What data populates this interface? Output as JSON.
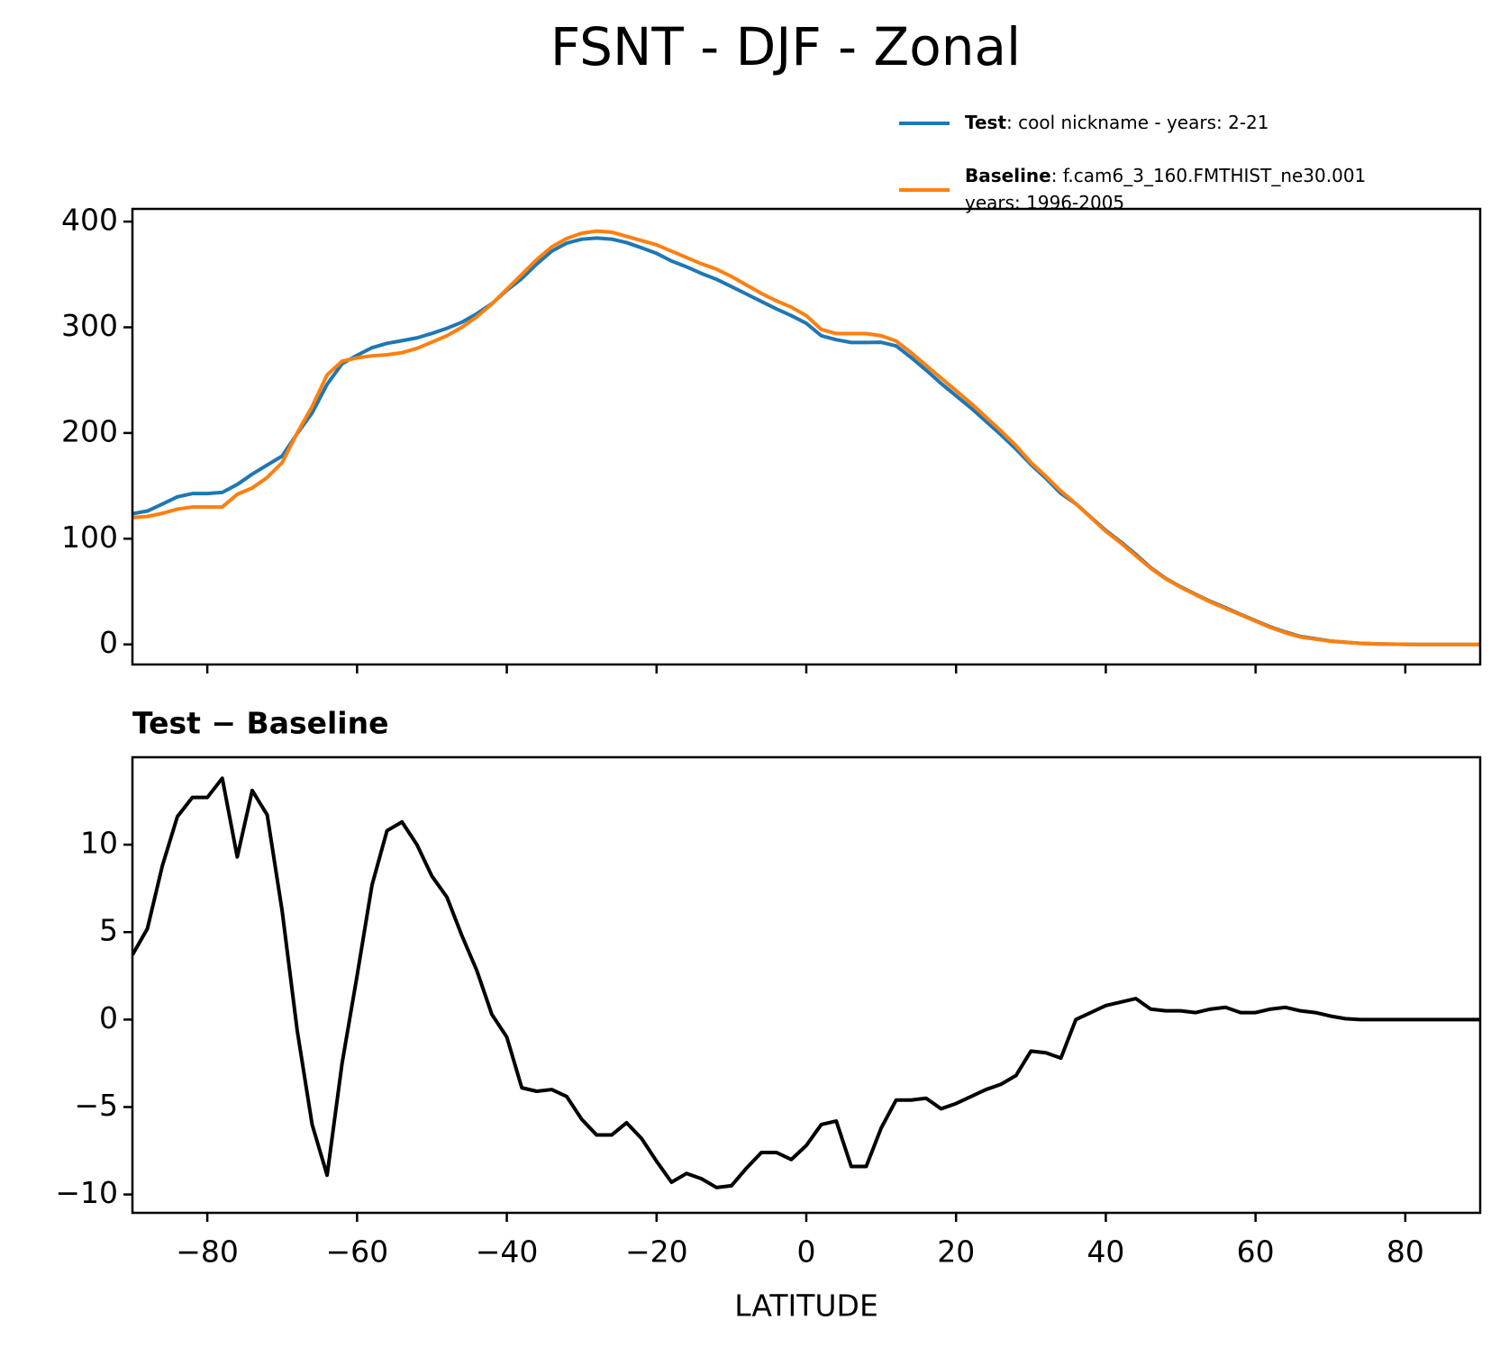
{
  "chart_data": [
    {
      "type": "line",
      "title": "FSNT - DJF - Zonal",
      "x": [
        -90,
        -88,
        -86,
        -84,
        -82,
        -80,
        -78,
        -76,
        -74,
        -72,
        -70,
        -68,
        -66,
        -64,
        -62,
        -60,
        -58,
        -56,
        -54,
        -52,
        -50,
        -48,
        -46,
        -44,
        -42,
        -40,
        -38,
        -36,
        -34,
        -32,
        -30,
        -28,
        -26,
        -24,
        -22,
        -20,
        -18,
        -16,
        -14,
        -12,
        -10,
        -8,
        -6,
        -4,
        -2,
        0,
        2,
        4,
        6,
        8,
        10,
        12,
        14,
        16,
        18,
        20,
        22,
        24,
        26,
        28,
        30,
        32,
        34,
        36,
        38,
        40,
        42,
        44,
        46,
        48,
        50,
        52,
        54,
        56,
        58,
        60,
        62,
        64,
        66,
        68,
        70,
        72,
        74,
        76,
        78,
        80,
        82,
        84,
        86,
        88,
        90
      ],
      "series": [
        {
          "name": "Test",
          "description": [
            ": cool nickname - years: 2-21"
          ],
          "color": "#1f77b4",
          "values": [
            123.7,
            126.2,
            132.8,
            139.6,
            142.7,
            142.7,
            143.8,
            151.3,
            161.1,
            169.7,
            178.2,
            199.4,
            219.0,
            246.1,
            265.5,
            273.5,
            280.7,
            284.8,
            287.3,
            290.0,
            294.2,
            299.0,
            304.8,
            312.8,
            322.3,
            335.0,
            346.1,
            359.9,
            372.0,
            379.6,
            383.3,
            384.4,
            383.4,
            380.1,
            375.2,
            369.9,
            362.7,
            357.2,
            350.9,
            345.4,
            338.5,
            331.5,
            324.4,
            317.4,
            311.0,
            303.8,
            292.0,
            288.2,
            285.6,
            285.6,
            285.8,
            282.4,
            271.4,
            259.5,
            246.9,
            235.2,
            223.6,
            211.0,
            198.3,
            184.8,
            170.2,
            157.1,
            142.8,
            133.0,
            120.4,
            107.8,
            97.0,
            85.2,
            72.6,
            62.5,
            54.5,
            47.4,
            40.6,
            34.7,
            28.4,
            22.4,
            16.6,
            11.7,
            7.5,
            5.4,
            3.2,
            2.05,
            1,
            0.5,
            0.3,
            0.1,
            0,
            0,
            0,
            0,
            0
          ]
        },
        {
          "name": "Baseline",
          "description": [
            ": f.cam6_3_160.FMTHIST_ne30.001",
            "years: 1996-2005"
          ],
          "color": "#ff7f0e",
          "values": [
            120,
            121,
            124,
            128,
            130,
            130,
            130,
            142,
            148,
            158,
            172,
            200,
            225,
            255,
            268,
            271,
            273,
            274,
            276,
            280,
            286,
            292,
            300,
            310,
            322,
            336,
            350,
            364,
            376,
            384,
            389,
            391,
            390,
            386,
            382,
            378,
            372,
            366,
            360,
            355,
            348,
            340,
            332,
            325,
            319,
            311,
            298,
            294,
            294,
            294,
            292,
            287,
            276,
            264,
            252,
            240,
            228,
            215,
            202,
            188,
            172,
            159,
            145,
            133,
            120,
            107,
            96,
            84,
            72,
            62,
            54,
            47,
            40,
            34,
            28,
            22,
            16,
            11,
            7,
            5,
            3,
            2,
            1,
            0.5,
            0.3,
            0.1,
            0,
            0,
            0,
            0,
            0
          ]
        }
      ],
      "xlim": [
        -90,
        90
      ],
      "xticks": [
        -80,
        -60,
        -40,
        -20,
        0,
        20,
        40,
        60,
        80
      ],
      "xticklabels": false,
      "ylim": [
        -19,
        412
      ],
      "yticks": [
        0,
        100,
        200,
        300,
        400
      ],
      "legend": "upper right"
    },
    {
      "type": "line",
      "title": "Test − Baseline",
      "xlabel": "LATITUDE",
      "x": [
        -90,
        -88,
        -86,
        -84,
        -82,
        -80,
        -78,
        -76,
        -74,
        -72,
        -70,
        -68,
        -66,
        -64,
        -62,
        -60,
        -58,
        -56,
        -54,
        -52,
        -50,
        -48,
        -46,
        -44,
        -42,
        -40,
        -38,
        -36,
        -34,
        -32,
        -30,
        -28,
        -26,
        -24,
        -22,
        -20,
        -18,
        -16,
        -14,
        -12,
        -10,
        -8,
        -6,
        -4,
        -2,
        0,
        2,
        4,
        6,
        8,
        10,
        12,
        14,
        16,
        18,
        20,
        22,
        24,
        26,
        28,
        30,
        32,
        34,
        36,
        38,
        40,
        42,
        44,
        46,
        48,
        50,
        52,
        54,
        56,
        58,
        60,
        62,
        64,
        66,
        68,
        70,
        72,
        74,
        76,
        78,
        80,
        82,
        84,
        86,
        88,
        90
      ],
      "series": [
        {
          "color": "#000000",
          "values": [
            3.7,
            5.2,
            8.8,
            11.6,
            12.7,
            12.7,
            13.8,
            9.3,
            13.1,
            11.7,
            6.2,
            -0.6,
            -6.0,
            -8.9,
            -2.5,
            2.5,
            7.7,
            10.8,
            11.3,
            10.0,
            8.2,
            7.0,
            4.8,
            2.8,
            0.3,
            -1.0,
            -3.9,
            -4.1,
            -4.0,
            -4.4,
            -5.7,
            -6.6,
            -6.6,
            -5.9,
            -6.8,
            -8.1,
            -9.3,
            -8.8,
            -9.1,
            -9.6,
            -9.5,
            -8.5,
            -7.6,
            -7.6,
            -8.0,
            -7.2,
            -6.0,
            -5.8,
            -8.4,
            -8.4,
            -6.2,
            -4.6,
            -4.6,
            -4.5,
            -5.1,
            -4.8,
            -4.4,
            -4.0,
            -3.7,
            -3.2,
            -1.8,
            -1.9,
            -2.2,
            0.0,
            0.4,
            0.8,
            1.0,
            1.2,
            0.6,
            0.5,
            0.5,
            0.4,
            0.6,
            0.7,
            0.4,
            0.4,
            0.6,
            0.7,
            0.5,
            0.4,
            0.2,
            0.05,
            0,
            0,
            0,
            0,
            0,
            0,
            0,
            0,
            0
          ]
        }
      ],
      "xlim": [
        -90,
        90
      ],
      "xticks": [
        {
          "value": -80,
          "label": "−80"
        },
        {
          "value": -60,
          "label": "−60"
        },
        {
          "value": -40,
          "label": "−40"
        },
        {
          "value": -20,
          "label": "−20"
        },
        0,
        20,
        40,
        60,
        80
      ],
      "ylim": [
        -11.05,
        15.0
      ],
      "yticks": [
        {
          "value": -10,
          "label": "−10"
        },
        {
          "value": -5,
          "label": "−5"
        },
        0,
        5,
        10
      ]
    }
  ]
}
